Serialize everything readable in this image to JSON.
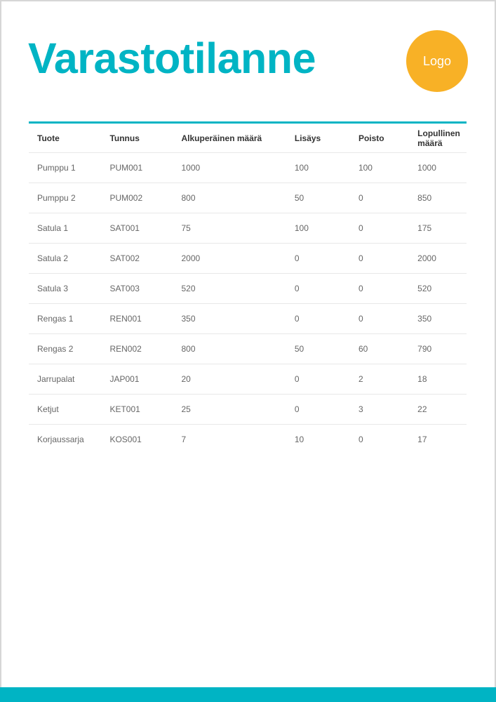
{
  "title": "Varastotilanne",
  "logo": "Logo",
  "colors": {
    "accent": "#00b4c4",
    "logo": "#f8b126"
  },
  "table": {
    "headers": [
      "Tuote",
      "Tunnus",
      "Alkuperäinen määrä",
      "Lisäys",
      "Poisto",
      "Lopullinen määrä"
    ],
    "rows": [
      [
        "Pumppu 1",
        "PUM001",
        "1000",
        "100",
        "100",
        "1000"
      ],
      [
        "Pumppu 2",
        "PUM002",
        "800",
        "50",
        "0",
        "850"
      ],
      [
        "Satula 1",
        "SAT001",
        "75",
        "100",
        "0",
        "175"
      ],
      [
        "Satula 2",
        "SAT002",
        "2000",
        "0",
        "0",
        "2000"
      ],
      [
        "Satula 3",
        "SAT003",
        "520",
        "0",
        "0",
        "520"
      ],
      [
        "Rengas 1",
        "REN001",
        "350",
        "0",
        "0",
        "350"
      ],
      [
        "Rengas 2",
        "REN002",
        "800",
        "50",
        "60",
        "790"
      ],
      [
        "Jarrupalat",
        "JAP001",
        "20",
        "0",
        "2",
        "18"
      ],
      [
        "Ketjut",
        "KET001",
        "25",
        "0",
        "3",
        "22"
      ],
      [
        "Korjaussarja",
        "KOS001",
        "7",
        "10",
        "0",
        "17"
      ]
    ]
  }
}
